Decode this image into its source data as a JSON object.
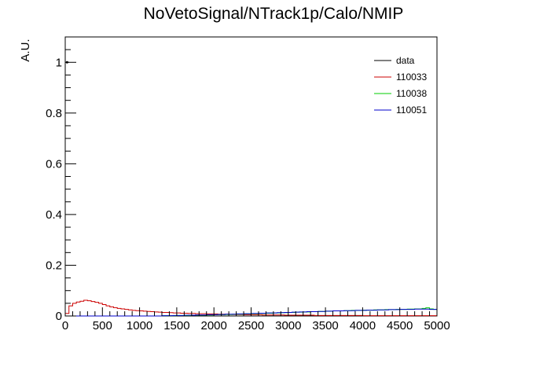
{
  "chart_data": {
    "type": "line",
    "title": "NoVetoSignal/NTrack1p/Calo/NMIP",
    "xlabel": "",
    "ylabel": "A.U.",
    "xlim": [
      0,
      5000
    ],
    "ylim": [
      0,
      1.1
    ],
    "x_ticks": [
      0,
      500,
      1000,
      1500,
      2000,
      2500,
      3000,
      3500,
      4000,
      4500,
      5000
    ],
    "y_ticks": [
      0,
      0.2,
      0.4,
      0.6,
      0.8,
      1
    ],
    "x_tick_labels": [
      "0",
      "500",
      "1000",
      "1500",
      "2000",
      "2500",
      "3000",
      "3500",
      "4000",
      "4500",
      "5000"
    ],
    "y_tick_labels": [
      "0",
      "0.2",
      "0.4",
      "0.6",
      "0.8",
      "1"
    ],
    "legend_position": "top-right",
    "bin_width": 50,
    "series": [
      {
        "name": "data",
        "color": "#000000",
        "values": [
          1.0
        ]
      },
      {
        "name": "110033",
        "color": "#cc0000",
        "values": [
          0.01,
          0.04,
          0.05,
          0.055,
          0.058,
          0.062,
          0.06,
          0.057,
          0.054,
          0.05,
          0.045,
          0.04,
          0.036,
          0.033,
          0.03,
          0.028,
          0.026,
          0.024,
          0.022,
          0.021,
          0.02,
          0.019,
          0.018,
          0.017,
          0.016,
          0.015,
          0.014,
          0.014,
          0.013,
          0.012,
          0.012,
          0.011,
          0.011,
          0.01,
          0.01,
          0.009,
          0.009,
          0.009,
          0.008,
          0.008,
          0.008,
          0.007,
          0.007,
          0.007,
          0.006,
          0.006,
          0.006,
          0.006,
          0.005,
          0.005,
          0.005,
          0.005,
          0.005,
          0.004,
          0.004,
          0.004,
          0.004,
          0.004,
          0.004,
          0.003,
          0.003,
          0.003,
          0.003,
          0.003,
          0.003,
          0.003,
          0.003,
          0.002,
          0.002,
          0.002,
          0.002,
          0.002,
          0.002,
          0.002,
          0.002,
          0.002,
          0.002,
          0.002,
          0.002,
          0.002,
          0.001,
          0.001,
          0.001,
          0.001,
          0.001,
          0.001,
          0.001,
          0.001,
          0.001,
          0.001,
          0.001,
          0.001,
          0.001,
          0.001,
          0.001,
          0.001,
          0.001,
          0.001,
          0.001,
          0.001
        ]
      },
      {
        "name": "110038",
        "color": "#00cc00",
        "values": [
          0.0,
          0.0,
          0.0,
          0.0,
          0.0,
          0.0,
          0.0,
          0.0,
          0.0,
          0.0,
          0.0,
          0.0,
          0.0,
          0.0,
          0.0,
          0.0,
          0.0,
          0.0,
          0.0,
          0.0,
          0.0,
          0.0,
          0.0,
          0.0,
          0.0,
          0.0,
          0.001,
          0.001,
          0.001,
          0.001,
          0.002,
          0.002,
          0.002,
          0.002,
          0.003,
          0.003,
          0.003,
          0.003,
          0.004,
          0.004,
          0.005,
          0.005,
          0.005,
          0.006,
          0.006,
          0.007,
          0.007,
          0.007,
          0.008,
          0.008,
          0.009,
          0.009,
          0.01,
          0.01,
          0.011,
          0.011,
          0.012,
          0.012,
          0.013,
          0.013,
          0.014,
          0.014,
          0.015,
          0.015,
          0.016,
          0.016,
          0.017,
          0.017,
          0.018,
          0.018,
          0.019,
          0.019,
          0.02,
          0.02,
          0.02,
          0.021,
          0.021,
          0.022,
          0.022,
          0.022,
          0.023,
          0.023,
          0.023,
          0.024,
          0.024,
          0.024,
          0.025,
          0.025,
          0.025,
          0.026,
          0.026,
          0.026,
          0.027,
          0.027,
          0.028,
          0.028,
          0.03,
          0.032,
          0.028,
          0.026
        ]
      },
      {
        "name": "110051",
        "color": "#0000cc",
        "values": [
          0.0,
          0.0,
          0.0,
          0.0,
          0.0,
          0.0,
          0.0,
          0.0,
          0.0,
          0.0,
          0.0,
          0.0,
          0.0,
          0.0,
          0.0,
          0.0,
          0.0,
          0.0,
          0.0,
          0.0,
          0.0,
          0.0,
          0.0,
          0.0,
          0.0,
          0.0,
          0.001,
          0.001,
          0.001,
          0.002,
          0.002,
          0.002,
          0.003,
          0.003,
          0.003,
          0.004,
          0.004,
          0.004,
          0.005,
          0.005,
          0.005,
          0.006,
          0.006,
          0.007,
          0.007,
          0.007,
          0.008,
          0.008,
          0.009,
          0.009,
          0.01,
          0.01,
          0.011,
          0.011,
          0.012,
          0.012,
          0.012,
          0.013,
          0.013,
          0.014,
          0.014,
          0.015,
          0.015,
          0.016,
          0.016,
          0.017,
          0.017,
          0.017,
          0.018,
          0.018,
          0.019,
          0.019,
          0.02,
          0.02,
          0.02,
          0.021,
          0.021,
          0.021,
          0.022,
          0.022,
          0.022,
          0.023,
          0.023,
          0.023,
          0.024,
          0.024,
          0.024,
          0.025,
          0.025,
          0.025,
          0.026,
          0.026,
          0.026,
          0.026,
          0.027,
          0.027,
          0.027,
          0.027,
          0.026,
          0.026
        ]
      }
    ]
  }
}
